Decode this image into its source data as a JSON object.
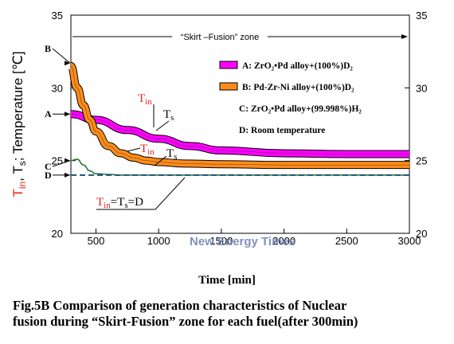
{
  "chart_data": {
    "type": "line",
    "title": "",
    "xlabel": "Time [min]",
    "ylabel": "T_in, T_s; Temperature [℃]",
    "ylabel_parts": {
      "tin": "T",
      "tin_sub": "in",
      "sep": ", T",
      "ts_sub": "s",
      "rest": "; Temperature [℃]"
    },
    "xlim": [
      300,
      3000
    ],
    "ylim": [
      20,
      35
    ],
    "xticks": [
      500,
      1000,
      1500,
      2000,
      2500,
      3000
    ],
    "xtick_labels": [
      "500",
      "1000",
      "1500",
      "2000",
      "2500",
      "3000"
    ],
    "yticks": [
      20,
      25,
      30,
      35
    ],
    "ytick_labels": [
      "20",
      "25",
      "30",
      "35"
    ],
    "grid": false,
    "legend_position": "top-right",
    "zone_label": "“Skirt –Fusion” zone",
    "series": [
      {
        "name": "A: ZrO₂•Pd alloy+(100%)D₂",
        "color": "#ff00ff",
        "band": true,
        "x": [
          300,
          500,
          750,
          1000,
          1250,
          1500,
          2000,
          2500,
          3000
        ],
        "y": [
          28.2,
          27.8,
          27.1,
          26.5,
          26.0,
          25.7,
          25.5,
          25.45,
          25.45
        ]
      },
      {
        "name": "B: Pd-Zr-Ni alloy+(100%)D₂",
        "color": "#ff8c1a",
        "band": true,
        "x": [
          300,
          350,
          400,
          450,
          500,
          600,
          700,
          800,
          900,
          1000,
          1200,
          1500,
          2000,
          2500,
          3000
        ],
        "y": [
          31.5,
          30.0,
          28.8,
          27.8,
          27.0,
          26.0,
          25.5,
          25.2,
          25.0,
          24.9,
          24.8,
          24.75,
          24.7,
          24.7,
          24.7
        ]
      },
      {
        "name": "C: ZrO₂•Pd alloy+(99.998%)H₂",
        "color": "#1f6e2e",
        "band": false,
        "x": [
          300,
          350,
          400,
          450,
          500,
          600,
          700,
          1000,
          2000,
          3000
        ],
        "y": [
          25.0,
          25.1,
          24.7,
          24.3,
          24.1,
          24.05,
          24.0,
          24.0,
          24.0,
          24.0
        ]
      },
      {
        "name": "D: Room temperature",
        "color": "#1a5276",
        "dashed": true,
        "band": false,
        "x": [
          300,
          3000
        ],
        "y": [
          24.0,
          24.0
        ]
      }
    ],
    "annotations": {
      "A": "A",
      "B": "B",
      "C": "C",
      "D": "D",
      "tin_a": {
        "main": "T",
        "sub": "in"
      },
      "ts_a": {
        "main": "T",
        "sub": "s"
      },
      "tin_b": {
        "main": "T",
        "sub": "in"
      },
      "ts_b": {
        "main": "T",
        "sub": "s"
      },
      "eq": {
        "t": "T",
        "sub": "in",
        "rest": "=T",
        "sub2": "s",
        "tail": "=D"
      }
    }
  },
  "caption": {
    "line1": "Fig.5B   Comparison of generation characteristics of Nuclear",
    "line2": "fusion during “Skirt-Fusion” zone for each fuel(after 300min)"
  },
  "watermark": "New Energy Times",
  "colors": {
    "tin_red": "#e8251b",
    "axis": "#000000"
  }
}
